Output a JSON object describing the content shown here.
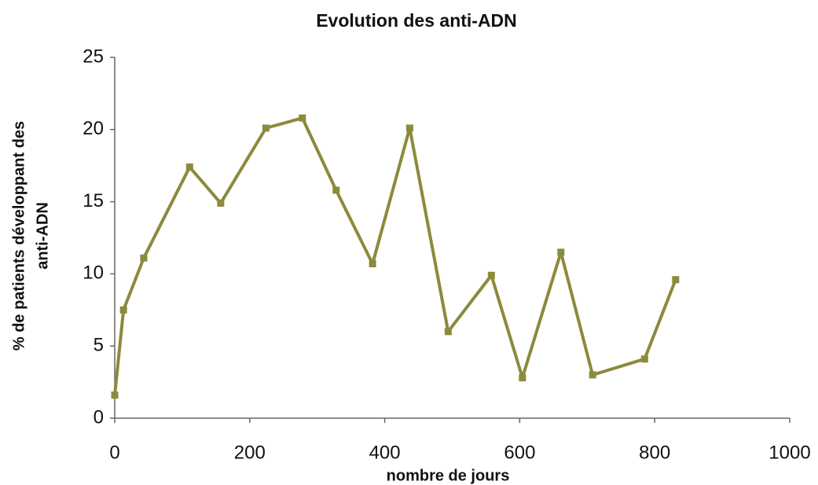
{
  "chart_data": {
    "type": "line",
    "title": "Evolution des anti-ADN",
    "xlabel": "nombre de jours",
    "ylabel": [
      "% de patients développant des",
      "anti-ADN"
    ],
    "series": [
      {
        "name": "anti-ADN",
        "color": "#8c8a3c",
        "x": [
          0,
          13,
          43,
          111,
          157,
          224,
          278,
          328,
          382,
          437,
          494,
          558,
          604,
          661,
          708,
          785,
          831
        ],
        "values": [
          1.6,
          7.5,
          11.1,
          17.4,
          14.9,
          20.1,
          20.8,
          15.8,
          10.7,
          20.1,
          6.0,
          9.9,
          2.8,
          11.5,
          3.0,
          4.1,
          9.6
        ]
      }
    ],
    "xlim": [
      0,
      1000
    ],
    "xticks": [
      0,
      200,
      400,
      600,
      800,
      1000
    ],
    "ylim": [
      0,
      25
    ],
    "yticks": [
      0,
      5,
      10,
      15,
      20,
      25
    ],
    "grid": false
  }
}
